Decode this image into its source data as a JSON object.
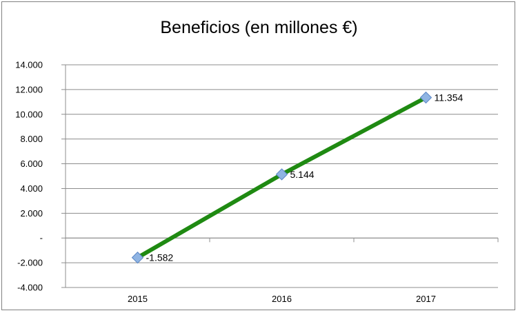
{
  "chart_data": {
    "type": "line",
    "title": "Beneficios (en millones €)",
    "xlabel": "",
    "ylabel": "",
    "categories": [
      "2015",
      "2016",
      "2017"
    ],
    "series": [
      {
        "values": [
          -1582,
          5144,
          11354
        ],
        "data_labels": [
          "-1.582",
          "5.144",
          "11.354"
        ]
      }
    ],
    "ylim": [
      -4000,
      14000
    ],
    "y_ticks": [
      {
        "value": 14000,
        "label": "14.000"
      },
      {
        "value": 12000,
        "label": "12.000"
      },
      {
        "value": 10000,
        "label": "10.000"
      },
      {
        "value": 8000,
        "label": "8.000"
      },
      {
        "value": 6000,
        "label": "6.000"
      },
      {
        "value": 4000,
        "label": "4.000"
      },
      {
        "value": 2000,
        "label": "2.000"
      },
      {
        "value": 0,
        "label": "-"
      },
      {
        "value": -2000,
        "label": "-2.000"
      },
      {
        "value": -4000,
        "label": "-4.000"
      }
    ],
    "grid": true,
    "legend": "none",
    "colors": {
      "line": "#1f8a12",
      "marker": "#8fb4e3",
      "marker_stroke": "#5b86c5",
      "grid": "#8c8c8c"
    }
  }
}
